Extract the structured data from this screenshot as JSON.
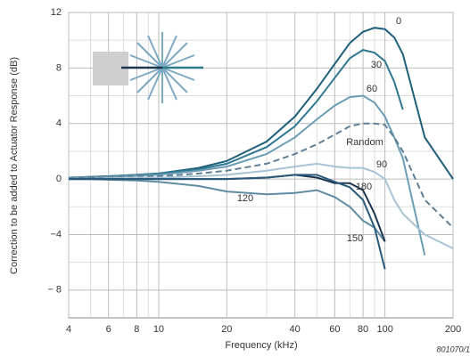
{
  "chart_data": {
    "type": "line",
    "y_label": "Correction to be added to Actuator Response (dB)",
    "x_label": "Frequency (kHz)",
    "footnote": "801070/1",
    "x": [
      4,
      5,
      6,
      8,
      10,
      15,
      20,
      30,
      40,
      50,
      60,
      70,
      80,
      90,
      100,
      110,
      120,
      150,
      200
    ],
    "series": [
      {
        "name": "0",
        "color": "#1f5f7a",
        "values": [
          0.1,
          0.15,
          0.2,
          0.3,
          0.4,
          0.8,
          1.3,
          2.7,
          4.5,
          6.5,
          8.3,
          9.8,
          10.6,
          10.9,
          10.8,
          10.2,
          9,
          3,
          0
        ]
      },
      {
        "name": "30",
        "color": "#2f7891",
        "values": [
          0.1,
          0.15,
          0.2,
          0.3,
          0.4,
          0.7,
          1.1,
          2.3,
          3.8,
          5.6,
          7.3,
          8.7,
          9.3,
          9.1,
          8.5,
          7,
          5,
          null,
          null
        ]
      },
      {
        "name": "60",
        "color": "#6d9db5",
        "values": [
          0.1,
          0.1,
          0.15,
          0.25,
          0.3,
          0.6,
          0.9,
          1.8,
          3,
          4.3,
          5.3,
          5.9,
          6,
          5.5,
          4.5,
          3,
          1.5,
          -5.5,
          null
        ]
      },
      {
        "name": "Random",
        "color": "#5f7f94",
        "dashed": true,
        "values": [
          0.05,
          0.1,
          0.1,
          0.2,
          0.2,
          0.4,
          0.6,
          1.1,
          1.8,
          2.5,
          3.2,
          3.8,
          4,
          4,
          3.9,
          3,
          2,
          -1.5,
          -3.5
        ]
      },
      {
        "name": "90",
        "color": "#a8c4d4",
        "values": [
          0,
          0,
          0.05,
          0.1,
          0.1,
          0.2,
          0.3,
          0.6,
          0.9,
          1.1,
          0.9,
          0.8,
          0.8,
          0.5,
          0,
          -1.5,
          -2.5,
          -4,
          -5
        ]
      },
      {
        "name": "120",
        "color": "#5f8ca3",
        "values": [
          0,
          0,
          -0.05,
          -0.1,
          -0.2,
          -0.5,
          -0.9,
          -1.1,
          -1,
          -0.8,
          -1.3,
          -2,
          -3,
          -3.5,
          -4.5,
          null,
          null,
          null,
          null
        ]
      },
      {
        "name": "180",
        "color": "#1e3550",
        "values": [
          0,
          0,
          0,
          0,
          0,
          0,
          0,
          0.1,
          0.3,
          0.1,
          -0.3,
          -0.3,
          -0.8,
          -2.5,
          -4.5,
          null,
          null,
          null,
          null
        ]
      },
      {
        "name": "150",
        "color": "#2a5a7a",
        "values": [
          0,
          0,
          0,
          0,
          0,
          0,
          0,
          0.1,
          0.3,
          0.3,
          -0.2,
          -0.6,
          -1.5,
          -3.5,
          -6.5,
          null,
          null,
          null,
          null
        ]
      }
    ],
    "xlim": [
      4,
      200
    ],
    "log_x": true,
    "xticks": [
      4,
      6,
      8,
      10,
      20,
      40,
      60,
      80,
      100,
      200
    ],
    "xgrid_minor": [
      5,
      7,
      9,
      30,
      50,
      70,
      90
    ],
    "ylim": [
      -10,
      12
    ],
    "yticks": [
      12,
      8,
      4,
      0,
      {
        "value": -4,
        "label": "−4"
      },
      {
        "value": -8,
        "label": "− 8"
      }
    ],
    "ygrid_minor": [
      10,
      6,
      2,
      -2,
      -6
    ],
    "grid": true
  }
}
